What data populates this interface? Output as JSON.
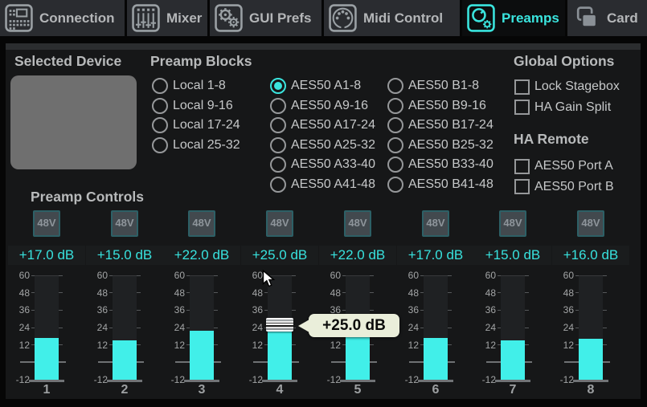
{
  "colors": {
    "accent": "#3ae4de",
    "meter_fill": "#41efe9",
    "gain_text": "#38e2de",
    "tooltip_bg": "#eaeeda",
    "panel_bg": "#161718",
    "tab_bg": "#2a2c30"
  },
  "tabs": [
    {
      "label": "Connection",
      "icon": "console-icon",
      "selected": false
    },
    {
      "label": "Mixer",
      "icon": "mixer-icon",
      "selected": false
    },
    {
      "label": "GUI Prefs",
      "icon": "gears-icon",
      "selected": false
    },
    {
      "label": "Midi Control",
      "icon": "midi-icon",
      "selected": false
    },
    {
      "label": "Preamps",
      "icon": "preamp-knob-icon",
      "selected": true
    },
    {
      "label": "Card",
      "icon": "card-icon",
      "selected": false
    }
  ],
  "selected_device": {
    "heading": "Selected Device"
  },
  "preamp_blocks": {
    "heading": "Preamp Blocks",
    "columns": [
      {
        "options": [
          {
            "label": "Local 1-8",
            "selected": false
          },
          {
            "label": "Local 9-16",
            "selected": false
          },
          {
            "label": "Local 17-24",
            "selected": false
          },
          {
            "label": "Local 25-32",
            "selected": false
          }
        ]
      },
      {
        "options": [
          {
            "label": "AES50 A1-8",
            "selected": true
          },
          {
            "label": "AES50 A9-16",
            "selected": false
          },
          {
            "label": "AES50 A17-24",
            "selected": false
          },
          {
            "label": "AES50 A25-32",
            "selected": false
          },
          {
            "label": "AES50 A33-40",
            "selected": false
          },
          {
            "label": "AES50 A41-48",
            "selected": false
          }
        ]
      },
      {
        "options": [
          {
            "label": "AES50 B1-8",
            "selected": false
          },
          {
            "label": "AES50 B9-16",
            "selected": false
          },
          {
            "label": "AES50 B17-24",
            "selected": false
          },
          {
            "label": "AES50 B25-32",
            "selected": false
          },
          {
            "label": "AES50 B33-40",
            "selected": false
          },
          {
            "label": "AES50 B41-48",
            "selected": false
          }
        ]
      }
    ]
  },
  "global_options": {
    "heading": "Global Options",
    "options": [
      {
        "label": "Lock Stagebox",
        "checked": false
      },
      {
        "label": "HA Gain Split",
        "checked": false
      }
    ]
  },
  "ha_remote": {
    "heading": "HA Remote",
    "options": [
      {
        "label": "AES50 Port A",
        "checked": false
      },
      {
        "label": "AES50 Port B",
        "checked": false
      }
    ]
  },
  "preamp_controls": {
    "heading": "Preamp Controls",
    "phantom_label": "48V",
    "scale_labels": [
      60,
      48,
      36,
      24,
      12,
      -12
    ],
    "scale_min": -12,
    "scale_max": 60,
    "channels": [
      {
        "number": "1",
        "gain_db": 17,
        "gain_label": "+17.0 dB",
        "phantom": false
      },
      {
        "number": "2",
        "gain_db": 15,
        "gain_label": "+15.0 dB",
        "phantom": false
      },
      {
        "number": "3",
        "gain_db": 22,
        "gain_label": "+22.0 dB",
        "phantom": false
      },
      {
        "number": "4",
        "gain_db": 25,
        "gain_label": "+25.0 dB",
        "phantom": false,
        "has_handle": true
      },
      {
        "number": "5",
        "gain_db": 22,
        "gain_label": "+22.0 dB",
        "phantom": false
      },
      {
        "number": "6",
        "gain_db": 17,
        "gain_label": "+17.0 dB",
        "phantom": false
      },
      {
        "number": "7",
        "gain_db": 15,
        "gain_label": "+15.0 dB",
        "phantom": false
      },
      {
        "number": "8",
        "gain_db": 16,
        "gain_label": "+16.0 dB",
        "phantom": false
      }
    ],
    "tooltip": {
      "text": "+25.0 dB",
      "channel": "4"
    }
  }
}
